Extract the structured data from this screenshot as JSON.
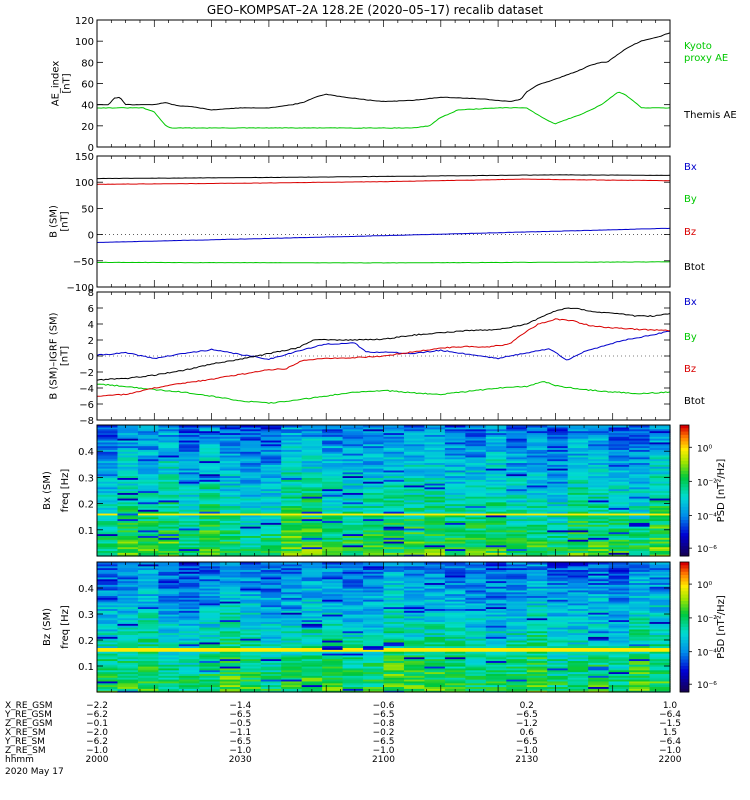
{
  "title": "GEO–KOMPSAT–2A 128.2E (2020–05–17) recalib dataset",
  "colors": {
    "black": "#000000",
    "red": "#d90000",
    "blue": "#0000cc",
    "green": "#00c800"
  },
  "chart_data": [
    {
      "type": "line",
      "ylabel": "AE_index\n[nT]",
      "ylim": [
        0,
        120
      ],
      "yticks": [
        0,
        20,
        40,
        60,
        80,
        100,
        120
      ],
      "x": [
        "2000",
        "2200"
      ],
      "series": [
        {
          "name": "Kyoto proxy AE",
          "color": "green",
          "label_lines": [
            "Kyoto",
            "proxy AE"
          ],
          "points": [
            [
              0,
              37
            ],
            [
              0.08,
              37
            ],
            [
              0.1,
              33
            ],
            [
              0.12,
              20
            ],
            [
              0.13,
              18
            ],
            [
              0.55,
              18
            ],
            [
              0.58,
              20
            ],
            [
              0.6,
              28
            ],
            [
              0.63,
              35
            ],
            [
              0.7,
              37
            ],
            [
              0.75,
              37
            ],
            [
              0.77,
              30
            ],
            [
              0.79,
              24
            ],
            [
              0.8,
              22
            ],
            [
              0.82,
              26
            ],
            [
              0.85,
              32
            ],
            [
              0.88,
              40
            ],
            [
              0.9,
              48
            ],
            [
              0.91,
              52
            ],
            [
              0.92,
              50
            ],
            [
              0.94,
              42
            ],
            [
              0.95,
              37
            ],
            [
              1,
              37
            ]
          ]
        },
        {
          "name": "Themis AE",
          "color": "black",
          "label_lines": [
            "Themis AE"
          ],
          "points": [
            [
              0,
              40
            ],
            [
              0.02,
              40
            ],
            [
              0.03,
              46
            ],
            [
              0.04,
              47
            ],
            [
              0.05,
              40
            ],
            [
              0.1,
              40
            ],
            [
              0.12,
              42
            ],
            [
              0.14,
              39
            ],
            [
              0.17,
              38
            ],
            [
              0.2,
              35
            ],
            [
              0.25,
              37
            ],
            [
              0.3,
              37
            ],
            [
              0.33,
              39
            ],
            [
              0.36,
              42
            ],
            [
              0.38,
              47
            ],
            [
              0.4,
              50
            ],
            [
              0.42,
              48
            ],
            [
              0.45,
              46
            ],
            [
              0.48,
              44
            ],
            [
              0.5,
              43
            ],
            [
              0.55,
              44
            ],
            [
              0.6,
              47
            ],
            [
              0.65,
              46
            ],
            [
              0.68,
              45
            ],
            [
              0.7,
              44
            ],
            [
              0.72,
              43
            ],
            [
              0.74,
              45
            ],
            [
              0.75,
              52
            ],
            [
              0.77,
              59
            ],
            [
              0.8,
              64
            ],
            [
              0.82,
              68
            ],
            [
              0.84,
              72
            ],
            [
              0.86,
              77
            ],
            [
              0.88,
              80
            ],
            [
              0.89,
              80
            ],
            [
              0.91,
              88
            ],
            [
              0.93,
              95
            ],
            [
              0.95,
              100
            ],
            [
              0.97,
              103
            ],
            [
              0.98,
              104
            ],
            [
              1,
              108
            ]
          ]
        }
      ]
    },
    {
      "type": "line",
      "ylabel": "B (SM)\n[nT]",
      "ylim": [
        -100,
        150
      ],
      "yticks": [
        -100,
        -50,
        0,
        50,
        100,
        150
      ],
      "series": [
        {
          "name": "Bx",
          "color": "blue",
          "points": [
            [
              0,
              -15
            ],
            [
              0.5,
              -2
            ],
            [
              1,
              12
            ]
          ]
        },
        {
          "name": "By",
          "color": "green",
          "points": [
            [
              0,
              -53
            ],
            [
              0.5,
              -54
            ],
            [
              1,
              -52
            ]
          ]
        },
        {
          "name": "Bz",
          "color": "red",
          "points": [
            [
              0,
              96
            ],
            [
              0.25,
              98
            ],
            [
              0.5,
              101
            ],
            [
              0.75,
              106
            ],
            [
              0.8,
              105
            ],
            [
              1,
              103
            ]
          ]
        },
        {
          "name": "Btot",
          "color": "black",
          "points": [
            [
              0,
              107
            ],
            [
              0.3,
              109
            ],
            [
              0.6,
              112
            ],
            [
              0.8,
              114
            ],
            [
              1,
              113
            ]
          ]
        }
      ]
    },
    {
      "type": "line",
      "ylabel": "B (SM)–IGRF (SM)\n[nT]",
      "ylim": [
        -8,
        8
      ],
      "yticks": [
        -8,
        -6,
        -4,
        -2,
        0,
        2,
        4,
        6,
        8
      ],
      "series": [
        {
          "name": "Bx",
          "color": "blue",
          "points": [
            [
              0,
              0.1
            ],
            [
              0.05,
              0.4
            ],
            [
              0.1,
              -0.3
            ],
            [
              0.15,
              0.3
            ],
            [
              0.2,
              0.8
            ],
            [
              0.25,
              0.2
            ],
            [
              0.3,
              -0.4
            ],
            [
              0.35,
              0.6
            ],
            [
              0.4,
              1.5
            ],
            [
              0.45,
              1.6
            ],
            [
              0.47,
              0.5
            ],
            [
              0.5,
              0.5
            ],
            [
              0.55,
              0.3
            ],
            [
              0.6,
              0.7
            ],
            [
              0.65,
              0.2
            ],
            [
              0.7,
              -0.3
            ],
            [
              0.75,
              0.4
            ],
            [
              0.79,
              0.9
            ],
            [
              0.82,
              -0.5
            ],
            [
              0.85,
              0.5
            ],
            [
              0.88,
              1.2
            ],
            [
              0.92,
              2
            ],
            [
              0.96,
              2.5
            ],
            [
              1,
              3.1
            ]
          ]
        },
        {
          "name": "By",
          "color": "green",
          "points": [
            [
              0,
              -3.5
            ],
            [
              0.05,
              -3.8
            ],
            [
              0.1,
              -4.2
            ],
            [
              0.15,
              -4.5
            ],
            [
              0.2,
              -5
            ],
            [
              0.25,
              -5.6
            ],
            [
              0.3,
              -5.9
            ],
            [
              0.35,
              -5.5
            ],
            [
              0.4,
              -5
            ],
            [
              0.45,
              -4.5
            ],
            [
              0.5,
              -4.3
            ],
            [
              0.55,
              -4.6
            ],
            [
              0.6,
              -4.8
            ],
            [
              0.65,
              -4.4
            ],
            [
              0.7,
              -4
            ],
            [
              0.75,
              -3.8
            ],
            [
              0.78,
              -3.2
            ],
            [
              0.8,
              -3.7
            ],
            [
              0.85,
              -4.2
            ],
            [
              0.9,
              -4.5
            ],
            [
              0.95,
              -4.7
            ],
            [
              1,
              -4.5
            ]
          ]
        },
        {
          "name": "Bz",
          "color": "red",
          "points": [
            [
              0,
              -5
            ],
            [
              0.05,
              -4.8
            ],
            [
              0.1,
              -4
            ],
            [
              0.15,
              -3.4
            ],
            [
              0.2,
              -2.9
            ],
            [
              0.25,
              -2.3
            ],
            [
              0.3,
              -1.7
            ],
            [
              0.33,
              -1.6
            ],
            [
              0.36,
              -0.5
            ],
            [
              0.4,
              -0.3
            ],
            [
              0.45,
              -0.2
            ],
            [
              0.5,
              0
            ],
            [
              0.55,
              0.5
            ],
            [
              0.6,
              1
            ],
            [
              0.65,
              1.2
            ],
            [
              0.68,
              1.1
            ],
            [
              0.72,
              1.5
            ],
            [
              0.74,
              2.6
            ],
            [
              0.77,
              4
            ],
            [
              0.8,
              4.6
            ],
            [
              0.83,
              4.4
            ],
            [
              0.86,
              3.8
            ],
            [
              0.9,
              3.5
            ],
            [
              0.95,
              3.3
            ],
            [
              1,
              3.2
            ]
          ]
        },
        {
          "name": "Btot",
          "color": "black",
          "points": [
            [
              0,
              -3
            ],
            [
              0.05,
              -2.8
            ],
            [
              0.1,
              -2.4
            ],
            [
              0.15,
              -1.8
            ],
            [
              0.2,
              -1
            ],
            [
              0.25,
              -0.4
            ],
            [
              0.3,
              0.3
            ],
            [
              0.35,
              1
            ],
            [
              0.38,
              2.1
            ],
            [
              0.42,
              2
            ],
            [
              0.45,
              2
            ],
            [
              0.5,
              2.1
            ],
            [
              0.55,
              2.6
            ],
            [
              0.6,
              2.9
            ],
            [
              0.65,
              3.2
            ],
            [
              0.7,
              3.3
            ],
            [
              0.75,
              4
            ],
            [
              0.78,
              5
            ],
            [
              0.8,
              5.6
            ],
            [
              0.82,
              6
            ],
            [
              0.84,
              5.9
            ],
            [
              0.87,
              5.5
            ],
            [
              0.9,
              5.4
            ],
            [
              0.94,
              5
            ],
            [
              0.97,
              5
            ],
            [
              1,
              5.3
            ]
          ]
        }
      ]
    },
    {
      "type": "heatmap",
      "ylabel": "Bx (SM)",
      "ylabel2": "freq [Hz]",
      "ylim": [
        0,
        0.5
      ],
      "yticks": [
        0.1,
        0.2,
        0.3,
        0.4
      ],
      "colorbar_label": "PSD [nT²/Hz]",
      "colorbar_ticks": [
        "10⁰",
        "10⁻²",
        "10⁻⁴",
        "10⁻⁶"
      ],
      "seed": 7,
      "band_freq": 0.16
    },
    {
      "type": "heatmap",
      "ylabel": "Bz (SM)",
      "ylabel2": "freq [Hz]",
      "ylim": [
        0,
        0.5
      ],
      "yticks": [
        0.1,
        0.2,
        0.3,
        0.4
      ],
      "colorbar_label": "PSD [nT²/Hz]",
      "colorbar_ticks": [
        "10⁰",
        "10⁻²",
        "10⁻⁴",
        "10⁻⁶"
      ],
      "seed": 13,
      "band_freq": 0.165
    }
  ],
  "ephemeris": {
    "row_labels": [
      "X_RE_GSM",
      "Y_RE_GSM",
      "Z_RE_GSM",
      "X_RE_SM",
      "Y_RE_SM",
      "Z_RE_SM",
      "hhmm",
      "2020 May 17"
    ],
    "columns": [
      [
        "−2.2",
        "−6.2",
        "−0.1",
        "−2.0",
        "−6.2",
        "−1.0",
        "2000"
      ],
      [
        "−1.4",
        "−6.5",
        "−0.5",
        "−1.1",
        "−6.5",
        "−1.0",
        "2030"
      ],
      [
        "−0.6",
        "−6.5",
        "−0.8",
        "−0.2",
        "−6.5",
        "−1.0",
        "2100"
      ],
      [
        "0.2",
        "−6.5",
        "−1.2",
        "0.6",
        "−6.5",
        "−1.0",
        "2130"
      ],
      [
        "1.0",
        "−6.4",
        "−1.5",
        "1.5",
        "−6.4",
        "−1.0",
        "2200"
      ]
    ]
  }
}
